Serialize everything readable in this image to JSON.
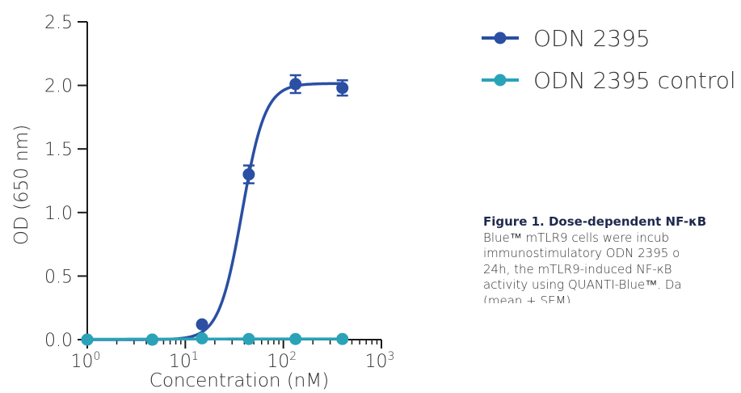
{
  "chart_data": {
    "type": "scatter",
    "xlabel": "Concentration (nM)",
    "ylabel": "OD (650 nm)",
    "x_scale": "log",
    "xlim": [
      1,
      1000
    ],
    "ylim": [
      0,
      2.5
    ],
    "x_tick_labels": [
      {
        "base": "10",
        "exp": "0",
        "value": 1
      },
      {
        "base": "10",
        "exp": "1",
        "value": 10
      },
      {
        "base": "10",
        "exp": "2",
        "value": 100
      },
      {
        "base": "10",
        "exp": "3",
        "value": 1000
      }
    ],
    "y_ticks": [
      0.0,
      0.5,
      1.0,
      1.5,
      2.0,
      2.5
    ],
    "y_tick_labels": [
      "0.0",
      "0.5",
      "1.0",
      "1.5",
      "2.0",
      "2.5"
    ],
    "grid": false,
    "legend_position": "top-right",
    "series": [
      {
        "name": "ODN 2395",
        "color": "#2a4fa3",
        "x": [
          1,
          4.6,
          14.8,
          44.4,
          133,
          400
        ],
        "y": [
          0.0,
          0.0,
          0.12,
          1.3,
          2.01,
          1.98
        ],
        "err": [
          0.0,
          0.0,
          0.01,
          0.07,
          0.07,
          0.06
        ],
        "fit": {
          "bottom": 0.0,
          "top": 2.015,
          "ec50": 38.0,
          "hill": 3.7
        }
      },
      {
        "name": "ODN 2395 control",
        "color": "#2aa3b8",
        "x": [
          1,
          4.6,
          14.8,
          44.4,
          133,
          400
        ],
        "y": [
          0.0,
          0.0,
          0.01,
          0.005,
          0.005,
          0.005
        ],
        "err": [
          0.0,
          0.0,
          0.0,
          0.0,
          0.0,
          0.0
        ],
        "fit": {
          "bottom": 0.003,
          "top": 0.006,
          "ec50": 10.0,
          "hill": 1.0
        }
      }
    ]
  },
  "caption": {
    "title": "Figure 1. Dose-dependent NF-κB",
    "lines": [
      "Blue™ mTLR9 cells were incub",
      "immunostimulatory ODN 2395 o",
      "24h, the mTLR9-induced NF-κB",
      "activity using QUANTI-Blue™. Da",
      "(mean + SEM)."
    ]
  }
}
